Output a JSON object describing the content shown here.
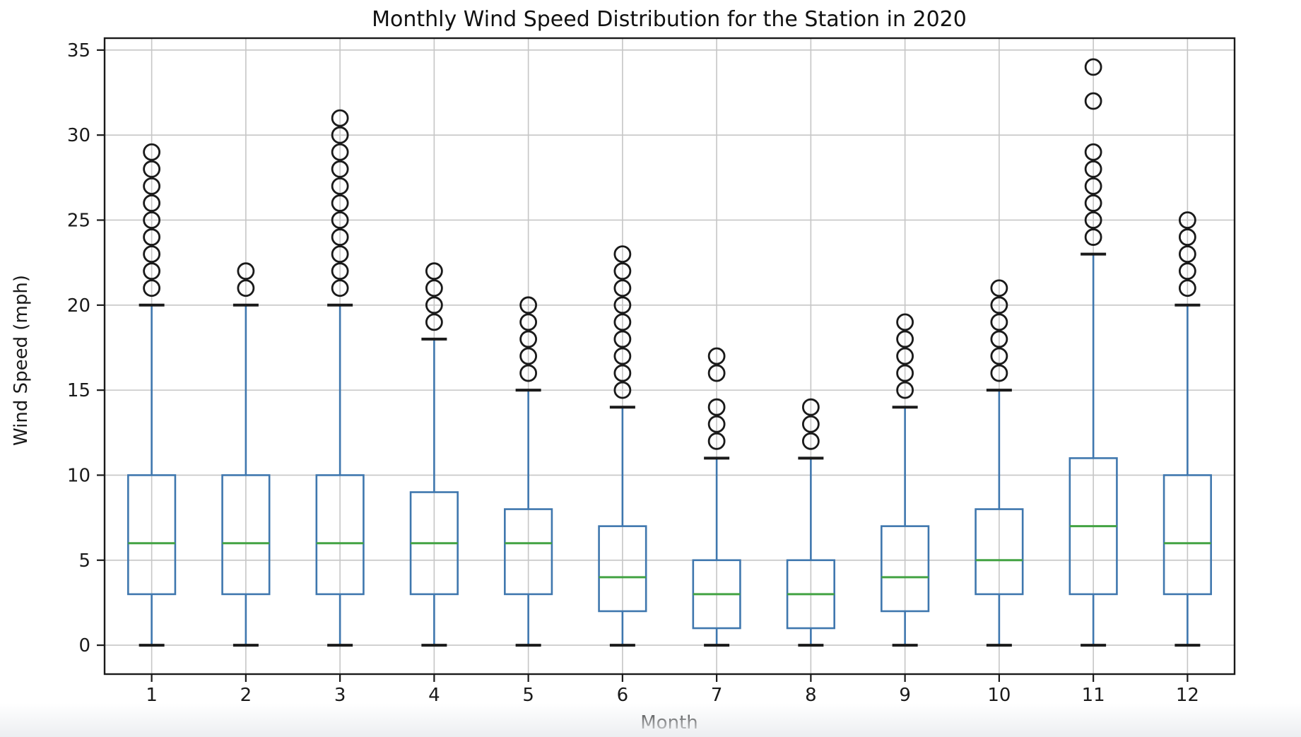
{
  "title": "Monthly Wind Speed Distribution for the Station in 2020",
  "xlabel": "Month",
  "ylabel": "Wind Speed (mph)",
  "chart_data": {
    "type": "box",
    "title": "Monthly Wind Speed Distribution for the Station in 2020",
    "xlabel": "Month",
    "ylabel": "Wind Speed (mph)",
    "categories": [
      "1",
      "2",
      "3",
      "4",
      "5",
      "6",
      "7",
      "8",
      "9",
      "10",
      "11",
      "12"
    ],
    "yticks": [
      0,
      5,
      10,
      15,
      20,
      25,
      30,
      35
    ],
    "ylim": [
      -1.7,
      35.7
    ],
    "xlim": [
      0.5,
      12.5
    ],
    "grid": true,
    "legend": "none",
    "series": [
      {
        "month": "1",
        "whislo": 0,
        "q1": 3,
        "med": 6,
        "q3": 10,
        "whishi": 20,
        "fliers": [
          21,
          22,
          23,
          24,
          25,
          26,
          27,
          28,
          29
        ]
      },
      {
        "month": "2",
        "whislo": 0,
        "q1": 3,
        "med": 6,
        "q3": 10,
        "whishi": 20,
        "fliers": [
          21,
          22
        ]
      },
      {
        "month": "3",
        "whislo": 0,
        "q1": 3,
        "med": 6,
        "q3": 10,
        "whishi": 20,
        "fliers": [
          21,
          22,
          23,
          24,
          25,
          26,
          27,
          28,
          29,
          30,
          31
        ]
      },
      {
        "month": "4",
        "whislo": 0,
        "q1": 3,
        "med": 6,
        "q3": 9,
        "whishi": 18,
        "fliers": [
          19,
          20,
          21,
          22
        ]
      },
      {
        "month": "5",
        "whislo": 0,
        "q1": 3,
        "med": 6,
        "q3": 8,
        "whishi": 15,
        "fliers": [
          16,
          17,
          18,
          19,
          20
        ]
      },
      {
        "month": "6",
        "whislo": 0,
        "q1": 2,
        "med": 4,
        "q3": 7,
        "whishi": 14,
        "fliers": [
          15,
          16,
          17,
          18,
          19,
          20,
          21,
          22,
          23
        ]
      },
      {
        "month": "7",
        "whislo": 0,
        "q1": 1,
        "med": 3,
        "q3": 5,
        "whishi": 11,
        "fliers": [
          12,
          13,
          14,
          16,
          17
        ]
      },
      {
        "month": "8",
        "whislo": 0,
        "q1": 1,
        "med": 3,
        "q3": 5,
        "whishi": 11,
        "fliers": [
          12,
          13,
          14
        ]
      },
      {
        "month": "9",
        "whislo": 0,
        "q1": 2,
        "med": 4,
        "q3": 7,
        "whishi": 14,
        "fliers": [
          15,
          16,
          17,
          18,
          19
        ]
      },
      {
        "month": "10",
        "whislo": 0,
        "q1": 3,
        "med": 5,
        "q3": 8,
        "whishi": 15,
        "fliers": [
          16,
          17,
          18,
          19,
          20,
          21
        ]
      },
      {
        "month": "11",
        "whislo": 0,
        "q1": 3,
        "med": 7,
        "q3": 11,
        "whishi": 23,
        "fliers": [
          24,
          25,
          26,
          27,
          28,
          29,
          32,
          34
        ]
      },
      {
        "month": "12",
        "whislo": 0,
        "q1": 3,
        "med": 6,
        "q3": 10,
        "whishi": 20,
        "fliers": [
          21,
          22,
          23,
          24,
          25
        ]
      }
    ],
    "colors": {
      "box": "#3f77ae",
      "whisker": "#3f77ae",
      "median": "#43a343",
      "cap": "#1a1a1a",
      "flier": "#1a1a1a",
      "grid": "#c6c6c6",
      "frame": "#1a1a1a",
      "text": "#1a1a1a"
    }
  }
}
